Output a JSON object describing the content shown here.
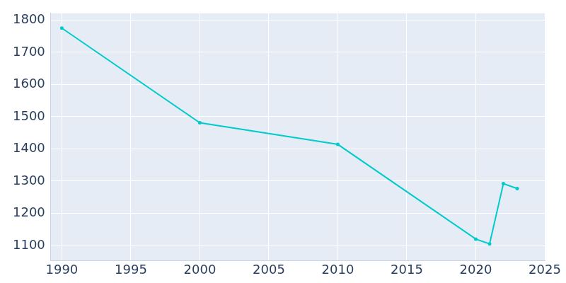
{
  "chart_data": {
    "type": "line",
    "x": [
      1990,
      2000,
      2010,
      2020,
      2021,
      2022,
      2023
    ],
    "values": [
      1775,
      1481,
      1414,
      1120,
      1105,
      1292,
      1277
    ],
    "color": "#00cbcb",
    "marker": "circle",
    "xlim": [
      1989.2,
      2025
    ],
    "xticks": [
      1990,
      1995,
      2000,
      2005,
      2010,
      2015,
      2020,
      2025
    ],
    "ylim": [
      1053,
      1821
    ],
    "yticks": [
      1100,
      1200,
      1300,
      1400,
      1500,
      1600,
      1700,
      1800
    ],
    "grid": true
  }
}
